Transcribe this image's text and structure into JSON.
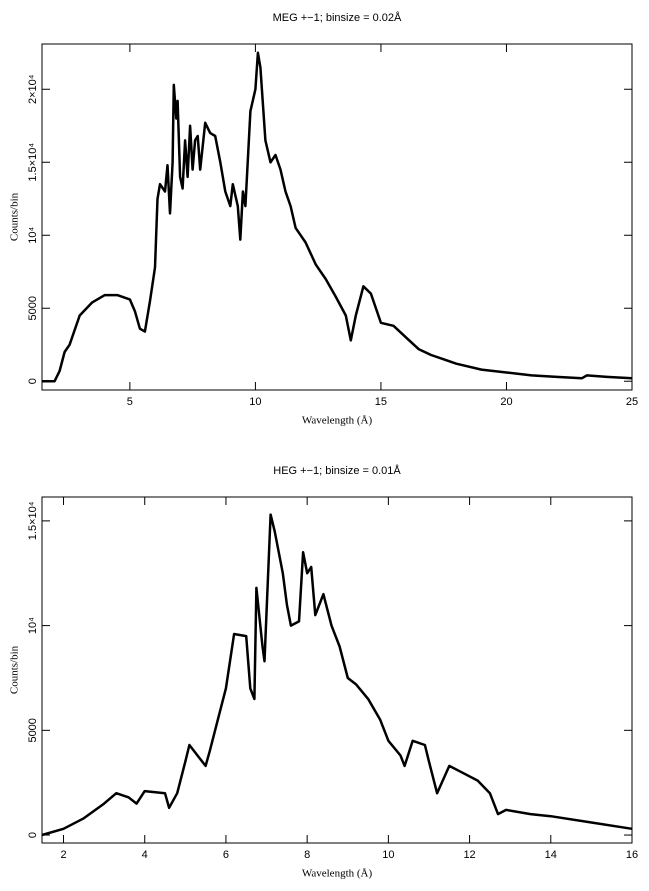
{
  "chart_data": [
    {
      "type": "line",
      "title": "MEG +−1; binsize = 0.02Å",
      "xlabel": "Wavelength (Å)",
      "ylabel": "Counts/bin",
      "xlim": [
        1.5,
        25
      ],
      "ylim": [
        -600,
        23100
      ],
      "xticks": [
        5,
        10,
        15,
        20,
        25
      ],
      "yticks": [
        0,
        5000,
        {
          "value": 10000,
          "label": "10⁴"
        },
        {
          "value": 15000,
          "label": "1.5×10⁴"
        },
        {
          "value": 20000,
          "label": "2×10⁴"
        }
      ],
      "x": [
        1.5,
        2.0,
        2.2,
        2.4,
        2.6,
        3.0,
        3.5,
        4.0,
        4.5,
        5.0,
        5.2,
        5.4,
        5.6,
        5.8,
        6.0,
        6.1,
        6.2,
        6.4,
        6.5,
        6.6,
        6.7,
        6.75,
        6.85,
        6.9,
        7.0,
        7.1,
        7.2,
        7.3,
        7.4,
        7.5,
        7.6,
        7.7,
        7.8,
        8.0,
        8.2,
        8.4,
        8.6,
        8.8,
        9.0,
        9.1,
        9.3,
        9.4,
        9.5,
        9.6,
        9.8,
        10.0,
        10.1,
        10.2,
        10.4,
        10.6,
        10.8,
        11.0,
        11.2,
        11.4,
        11.6,
        11.8,
        12.0,
        12.4,
        12.8,
        13.2,
        13.6,
        13.8,
        14.0,
        14.3,
        14.6,
        15.0,
        15.5,
        16.0,
        16.5,
        17.0,
        17.5,
        18.0,
        19.0,
        20.0,
        21.0,
        22.0,
        23.0,
        23.2,
        24.0,
        25.0
      ],
      "series": [
        {
          "color": "#000000",
          "values": [
            0,
            0,
            700,
            2000,
            2500,
            4500,
            5400,
            5900,
            5900,
            5600,
            4800,
            3600,
            3400,
            5500,
            7800,
            12500,
            13500,
            13000,
            14800,
            11500,
            15000,
            20300,
            18000,
            19200,
            14000,
            13200,
            16500,
            14000,
            17500,
            14500,
            16500,
            16800,
            14500,
            17700,
            17000,
            16800,
            15000,
            13000,
            12000,
            13500,
            12000,
            9700,
            13000,
            12000,
            18500,
            20000,
            22500,
            21500,
            16500,
            15000,
            15500,
            14500,
            13000,
            12000,
            10500,
            10000,
            9500,
            8000,
            7000,
            5800,
            4500,
            2800,
            4500,
            6500,
            6000,
            4000,
            3800,
            3000,
            2200,
            1800,
            1500,
            1200,
            800,
            600,
            400,
            300,
            200,
            400,
            300,
            200
          ]
        }
      ]
    },
    {
      "type": "line",
      "title": "HEG +−1; binsize = 0.01Å",
      "xlabel": "Wavelength (Å)",
      "ylabel": "Counts/bin",
      "xlim": [
        1.47,
        16
      ],
      "ylim": [
        -380,
        16140
      ],
      "xticks": [
        2,
        4,
        6,
        8,
        10,
        12,
        14,
        16
      ],
      "yticks": [
        0,
        5000,
        {
          "value": 10000,
          "label": "10⁴"
        },
        {
          "value": 15000,
          "label": "1.5×10⁴"
        }
      ],
      "x": [
        1.47,
        2.0,
        2.5,
        3.0,
        3.3,
        3.6,
        3.8,
        4.0,
        4.5,
        4.6,
        4.8,
        5.0,
        5.1,
        5.3,
        5.5,
        5.6,
        5.8,
        6.0,
        6.2,
        6.5,
        6.6,
        6.7,
        6.75,
        6.9,
        6.95,
        7.1,
        7.2,
        7.4,
        7.5,
        7.6,
        7.8,
        7.9,
        8.0,
        8.1,
        8.2,
        8.4,
        8.6,
        8.8,
        9.0,
        9.2,
        9.5,
        9.8,
        10.0,
        10.3,
        10.4,
        10.6,
        10.9,
        11.0,
        11.2,
        11.5,
        11.8,
        12.2,
        12.5,
        12.7,
        12.9,
        13.5,
        14.0,
        15.0,
        16.0
      ],
      "series": [
        {
          "color": "#000000",
          "values": [
            0,
            300,
            800,
            1500,
            2000,
            1800,
            1500,
            2100,
            2000,
            1300,
            2000,
            3500,
            4300,
            3800,
            3300,
            4000,
            5500,
            7000,
            9600,
            9500,
            7000,
            6500,
            11800,
            9000,
            8300,
            15300,
            14500,
            12500,
            11000,
            10000,
            10200,
            13500,
            12500,
            12800,
            10500,
            11500,
            10000,
            9000,
            7500,
            7200,
            6500,
            5500,
            4500,
            3800,
            3300,
            4500,
            4300,
            3500,
            2000,
            3300,
            3000,
            2600,
            2000,
            1000,
            1200,
            1000,
            900,
            600,
            300
          ]
        }
      ]
    }
  ]
}
